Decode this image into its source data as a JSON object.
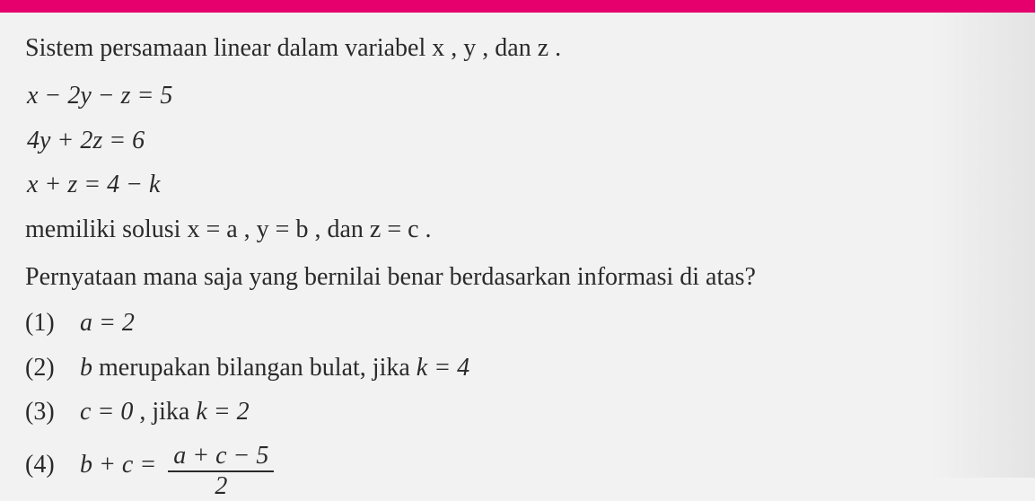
{
  "colors": {
    "top_bar": "#e6006e",
    "page_bg": "#f2f2f2",
    "text": "#2a2a2a"
  },
  "typography": {
    "body_fontsize_pt": 21,
    "font_family": "Georgia",
    "line_height": 1.55
  },
  "intro": "Sistem persamaan linear dalam variabel  x ,  y , dan  z .",
  "equations": {
    "eq1": "x − 2y − z = 5",
    "eq2": "4y + 2z = 6",
    "eq3": "x + z = 4 − k"
  },
  "solution_text": "memiliki solusi  x = a ,  y = b , dan  z = c .",
  "question": "Pernyataan mana saja yang bernilai benar berdasarkan informasi di atas?",
  "options": {
    "o1": {
      "num": "(1)",
      "text": "a = 2"
    },
    "o2": {
      "num": "(2)",
      "text_pre": "b",
      "text_mid": " merupakan bilangan bulat, jika ",
      "text_post": "k = 4"
    },
    "o3": {
      "num": "(3)",
      "text_pre": "c = 0",
      "text_mid": ", jika ",
      "text_post": "k = 2"
    },
    "o4": {
      "num": "(4)",
      "lhs": "b + c =",
      "frac_num": "a + c − 5",
      "frac_den": "2"
    }
  }
}
